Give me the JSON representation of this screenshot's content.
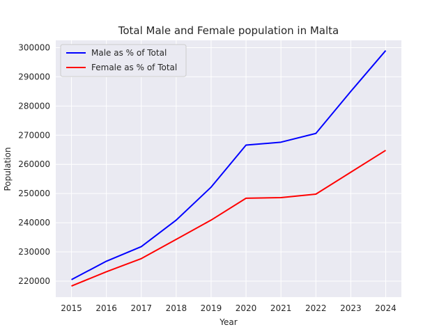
{
  "chart_data": {
    "type": "line",
    "title": "Total Male and Female population in Malta",
    "xlabel": "Year",
    "ylabel": "Population",
    "x": [
      2015,
      2016,
      2017,
      2018,
      2019,
      2020,
      2021,
      2022,
      2023,
      2024
    ],
    "xlim": [
      2014.55,
      2024.45
    ],
    "ylim": [
      214500,
      302500
    ],
    "yticks": [
      220000,
      230000,
      240000,
      250000,
      260000,
      270000,
      280000,
      290000,
      300000
    ],
    "grid": true,
    "legend_position": "top-left",
    "background_color": "#eaeaf2",
    "grid_color": "#ffffff",
    "series": [
      {
        "name": "Male as % of Total",
        "color": "#0000ff",
        "values": [
          220500,
          226800,
          231800,
          240900,
          252200,
          266600,
          267600,
          270600,
          285000,
          299000
        ]
      },
      {
        "name": "Female as % of Total",
        "color": "#ff0000",
        "values": [
          218300,
          223200,
          227700,
          234300,
          240900,
          248400,
          248600,
          249800,
          257300,
          264800
        ]
      }
    ]
  }
}
